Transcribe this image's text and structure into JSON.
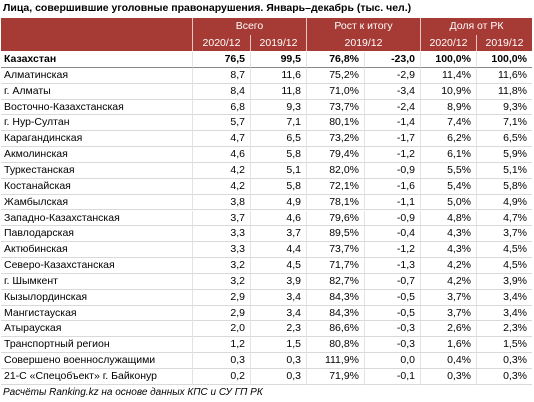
{
  "title": "Лица, совершившие уголовные правонарушения. Январь–декабрь (тыс. чел.)",
  "header": {
    "groups": [
      "Всего",
      "Рост к итогу",
      "Доля от РК"
    ],
    "years": [
      "2020/12",
      "2019/12",
      "2019/12",
      "2020/12",
      "2019/12"
    ]
  },
  "table": {
    "rows": [
      [
        "Казахстан",
        "76,5",
        "99,5",
        "76,8%",
        "-23,0",
        "100,0%",
        "100,0%"
      ],
      [
        "Алматинская",
        "8,7",
        "11,6",
        "75,2%",
        "-2,9",
        "11,4%",
        "11,6%"
      ],
      [
        "г. Алматы",
        "8,4",
        "11,8",
        "71,0%",
        "-3,4",
        "10,9%",
        "11,8%"
      ],
      [
        "Восточно-Казахстанская",
        "6,8",
        "9,3",
        "73,7%",
        "-2,4",
        "8,9%",
        "9,3%"
      ],
      [
        "г. Нур-Султан",
        "5,7",
        "7,1",
        "80,1%",
        "-1,4",
        "7,4%",
        "7,1%"
      ],
      [
        "Карагандинская",
        "4,7",
        "6,5",
        "73,2%",
        "-1,7",
        "6,2%",
        "6,5%"
      ],
      [
        "Акмолинская",
        "4,6",
        "5,8",
        "79,4%",
        "-1,2",
        "6,1%",
        "5,9%"
      ],
      [
        "Туркестанская",
        "4,2",
        "5,1",
        "82,0%",
        "-0,9",
        "5,5%",
        "5,1%"
      ],
      [
        "Костанайская",
        "4,2",
        "5,8",
        "72,1%",
        "-1,6",
        "5,4%",
        "5,8%"
      ],
      [
        "Жамбылская",
        "3,8",
        "4,9",
        "78,1%",
        "-1,1",
        "5,0%",
        "4,9%"
      ],
      [
        "Западно-Казахстанская",
        "3,7",
        "4,6",
        "79,6%",
        "-0,9",
        "4,8%",
        "4,7%"
      ],
      [
        "Павлодарская",
        "3,3",
        "3,7",
        "89,5%",
        "-0,4",
        "4,3%",
        "3,7%"
      ],
      [
        "Актюбинская",
        "3,3",
        "4,4",
        "73,7%",
        "-1,2",
        "4,3%",
        "4,5%"
      ],
      [
        "Северо-Казахстанская",
        "3,2",
        "4,5",
        "71,7%",
        "-1,3",
        "4,2%",
        "4,5%"
      ],
      [
        "г. Шымкент",
        "3,2",
        "3,9",
        "82,7%",
        "-0,7",
        "4,2%",
        "3,9%"
      ],
      [
        "Кызылординская",
        "2,9",
        "3,4",
        "84,3%",
        "-0,5",
        "3,7%",
        "3,4%"
      ],
      [
        "Мангистауская",
        "2,9",
        "3,4",
        "84,3%",
        "-0,5",
        "3,7%",
        "3,4%"
      ],
      [
        "Атырауская",
        "2,0",
        "2,3",
        "86,6%",
        "-0,3",
        "2,6%",
        "2,3%"
      ],
      [
        "Транспортный регион",
        "1,2",
        "1,5",
        "80,8%",
        "-0,3",
        "1,6%",
        "1,5%"
      ],
      [
        "Совершено военнослужащими",
        "0,3",
        "0,3",
        "111,9%",
        "0,0",
        "0,4%",
        "0,3%"
      ],
      [
        "21-С «Спецобъект» г. Байконур",
        "0,2",
        "0,3",
        "71,9%",
        "-0,1",
        "0,3%",
        "0,3%"
      ]
    ]
  },
  "footer": "Расчёты Ranking.kz на основе данных КПС и СУ ГП РК"
}
